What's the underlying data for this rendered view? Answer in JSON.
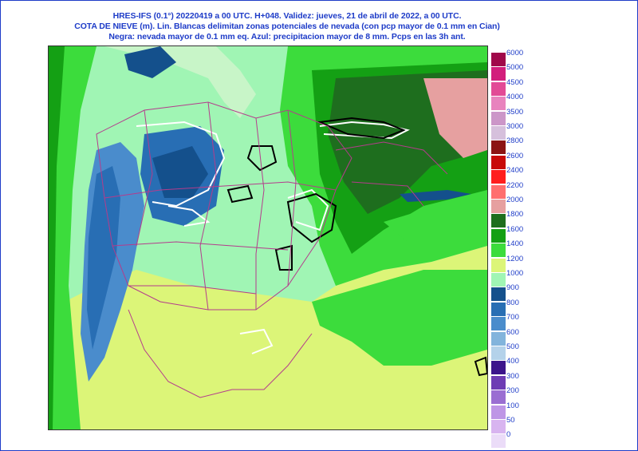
{
  "header": {
    "line1": "HRES-IFS (0.1°) 20220419 a 00 UTC.  H+048. Validez: jueves, 21 de abril de 2022,  a  00 UTC.",
    "line2": "COTA DE NIEVE (m). Lin. Blancas delimitan zonas potenciales de nevada (con pcp mayor de 0.1 mm en Cian)",
    "line3": "Negra: nevada mayor de 0.1 mm eq. Azul: precipitacion mayor de 8 mm. Pcps en las 3h ant."
  },
  "legend": [
    {
      "label": "6000",
      "color": "#a0084a"
    },
    {
      "label": "5000",
      "color": "#d21e7c"
    },
    {
      "label": "4500",
      "color": "#e24a96"
    },
    {
      "label": "4000",
      "color": "#e883be"
    },
    {
      "label": "3500",
      "color": "#cc96c8"
    },
    {
      "label": "3000",
      "color": "#d6c0dc"
    },
    {
      "label": "2800",
      "color": "#8c1414"
    },
    {
      "label": "2600",
      "color": "#c80a0a"
    },
    {
      "label": "2400",
      "color": "#ff1e1e"
    },
    {
      "label": "2200",
      "color": "#ff6e6e"
    },
    {
      "label": "2000",
      "color": "#e6a0a0"
    },
    {
      "label": "1800",
      "color": "#1e6e1e"
    },
    {
      "label": "1600",
      "color": "#14a014"
    },
    {
      "label": "1400",
      "color": "#3cdc3c"
    },
    {
      "label": "1200",
      "color": "#dcf578"
    },
    {
      "label": "1000",
      "color": "#a0f5b4"
    },
    {
      "label": "900",
      "color": "#14508c"
    },
    {
      "label": "800",
      "color": "#286eb4"
    },
    {
      "label": "700",
      "color": "#4a8ccc"
    },
    {
      "label": "600",
      "color": "#82b4dc"
    },
    {
      "label": "500",
      "color": "#b4d2ea"
    },
    {
      "label": "400",
      "color": "#3c148c"
    },
    {
      "label": "300",
      "color": "#6e3cb4"
    },
    {
      "label": "200",
      "color": "#9a6ed2"
    },
    {
      "label": "100",
      "color": "#be96e6"
    },
    {
      "label": "50",
      "color": "#d8b4f0"
    },
    {
      "label": "0",
      "color": "#ebdcf8"
    }
  ]
}
